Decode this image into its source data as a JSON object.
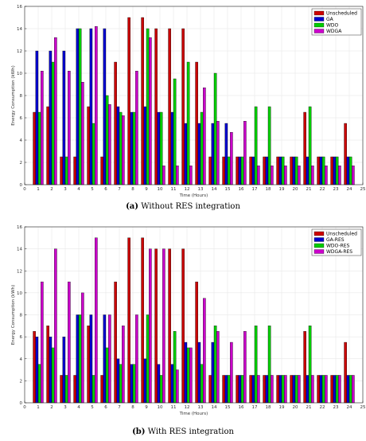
{
  "chart_data": [
    {
      "type": "bar",
      "caption_letter": "(a)",
      "caption_text": "Without RES integration",
      "xlabel": "Time (Hours)",
      "ylabel": "Energy Consumption (kWh)",
      "xlim": [
        0,
        25
      ],
      "ylim": [
        0,
        16
      ],
      "xticks": [
        0,
        1,
        2,
        3,
        4,
        5,
        6,
        7,
        8,
        9,
        10,
        11,
        12,
        13,
        14,
        15,
        16,
        17,
        18,
        19,
        20,
        21,
        22,
        23,
        24,
        25
      ],
      "yticks": [
        0,
        2,
        4,
        6,
        8,
        10,
        12,
        14,
        16
      ],
      "grid": true,
      "legend_position": "top-right",
      "categories": [
        1,
        2,
        3,
        4,
        5,
        6,
        7,
        8,
        9,
        10,
        11,
        12,
        13,
        14,
        15,
        16,
        17,
        18,
        19,
        20,
        21,
        22,
        23,
        24
      ],
      "series": [
        {
          "name": "Unscheduled",
          "color": "#cc0000",
          "values": [
            6.5,
            7,
            2.5,
            2.5,
            7,
            2.5,
            11,
            15,
            15,
            14,
            14,
            14,
            11,
            2.5,
            2.5,
            2.5,
            2.5,
            2.5,
            2.5,
            2.5,
            6.5,
            2.5,
            2.5,
            5.5
          ]
        },
        {
          "name": "GA",
          "color": "#0000cc",
          "values": [
            12,
            12,
            12,
            14,
            14,
            14,
            7,
            6.5,
            7,
            6.5,
            6.5,
            5.5,
            5.5,
            5.5,
            5.5,
            2.5,
            2.5,
            2.5,
            2.5,
            2.5,
            2.5,
            2.5,
            2.5,
            2.5
          ]
        },
        {
          "name": "WDO",
          "color": "#00cc00",
          "values": [
            6.5,
            11,
            2.5,
            14,
            5.5,
            8,
            6.5,
            6.5,
            14,
            6.5,
            9.5,
            11,
            6.5,
            10,
            2.5,
            2.5,
            7,
            7,
            2.5,
            2.5,
            7,
            2.5,
            2.5,
            2.5
          ]
        },
        {
          "name": "WDGA",
          "color": "#cc00cc",
          "values": [
            10.2,
            13.2,
            10.2,
            9.2,
            14.2,
            7.2,
            6.2,
            10.2,
            13.2,
            1.7,
            1.7,
            1.7,
            8.7,
            5.7,
            4.7,
            5.7,
            1.7,
            1.7,
            1.7,
            1.7,
            1.7,
            1.7,
            1.7,
            1.7
          ]
        }
      ]
    },
    {
      "type": "bar",
      "caption_letter": "(b)",
      "caption_text": "With RES integration",
      "xlabel": "Time (Hours)",
      "ylabel": "Energy Consumption (kWh)",
      "xlim": [
        0,
        25
      ],
      "ylim": [
        0,
        16
      ],
      "xticks": [
        0,
        1,
        2,
        3,
        4,
        5,
        6,
        7,
        8,
        9,
        10,
        11,
        12,
        13,
        14,
        15,
        16,
        17,
        18,
        19,
        20,
        21,
        22,
        23,
        24,
        25
      ],
      "yticks": [
        0,
        2,
        4,
        6,
        8,
        10,
        12,
        14,
        16
      ],
      "grid": true,
      "legend_position": "top-right",
      "categories": [
        1,
        2,
        3,
        4,
        5,
        6,
        7,
        8,
        9,
        10,
        11,
        12,
        13,
        14,
        15,
        16,
        17,
        18,
        19,
        20,
        21,
        22,
        23,
        24
      ],
      "series": [
        {
          "name": "Unscheduled",
          "color": "#cc0000",
          "values": [
            6.5,
            7,
            2.5,
            2.5,
            7,
            2.5,
            11,
            15,
            15,
            14,
            14,
            14,
            11,
            2.5,
            2.5,
            2.5,
            2.5,
            2.5,
            2.5,
            2.5,
            6.5,
            2.5,
            2.5,
            5.5
          ]
        },
        {
          "name": "GA-RES",
          "color": "#0000cc",
          "values": [
            6,
            6,
            6,
            8,
            8,
            8,
            4,
            3.5,
            4,
            3.5,
            3.5,
            5.5,
            5.5,
            5.5,
            2.5,
            2.5,
            2.5,
            2.5,
            2.5,
            2.5,
            2.5,
            2.5,
            2.5,
            2.5
          ]
        },
        {
          "name": "WDO-RES",
          "color": "#00cc00",
          "values": [
            3.5,
            5,
            2.5,
            8,
            2.5,
            5,
            3.5,
            3.5,
            8,
            2.5,
            6.5,
            5,
            3.5,
            7,
            2.5,
            2.5,
            7,
            7,
            2.5,
            2.5,
            7,
            2.5,
            2.5,
            2.5
          ]
        },
        {
          "name": "WDGA-RES",
          "color": "#cc00cc",
          "values": [
            11,
            14,
            11,
            10,
            15,
            8,
            7,
            8,
            14,
            14,
            3,
            5,
            9.5,
            6.5,
            5.5,
            6.5,
            2.5,
            2.5,
            2.5,
            2.5,
            2.5,
            2.5,
            2.5,
            2.5
          ]
        }
      ]
    }
  ]
}
